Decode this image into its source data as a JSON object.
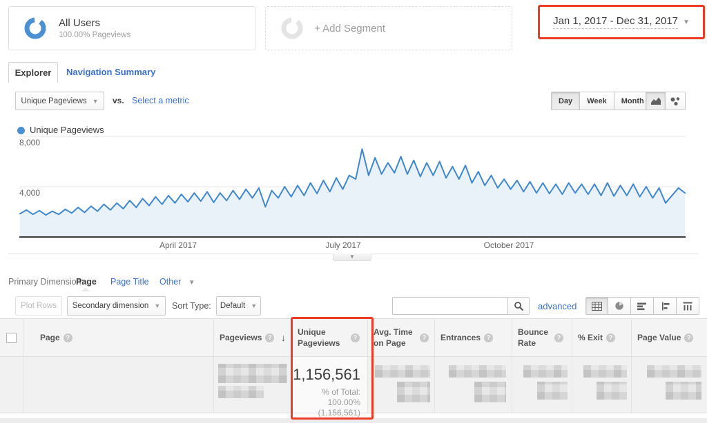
{
  "colors": {
    "accent_blue": "#4a90d2",
    "link_blue": "#3b6fd0",
    "chart_line": "#3f87cf",
    "chart_fill": "#e9f1f9",
    "annotation_red": "#ee3b24"
  },
  "icons": {
    "help_glyph": "?",
    "sort_desc_glyph": "↓",
    "caret_glyph": "▼",
    "collapse_glyph": "▼"
  },
  "segments": {
    "all_users": {
      "name": "All Users",
      "detail": "100.00% Pageviews"
    },
    "add_segment": {
      "label": "+ Add Segment"
    }
  },
  "date_range": {
    "label": "Jan 1, 2017 - Dec 31, 2017"
  },
  "tabs": {
    "explorer": "Explorer",
    "navigation_summary": "Navigation Summary"
  },
  "metric_bar": {
    "metric_dropdown": "Unique Pageviews",
    "vs_label": "vs.",
    "select_metric": "Select a metric",
    "granularity": {
      "day": "Day",
      "week": "Week",
      "month": "Month"
    },
    "active_granularity": "Day"
  },
  "chart_data": {
    "type": "area",
    "title": "Unique Pageviews",
    "legend_position": "top-left",
    "grid": true,
    "x_range": [
      "Jan 1, 2017",
      "Dec 31, 2017"
    ],
    "x_ticks": [
      "April 2017",
      "July 2017",
      "October 2017"
    ],
    "y_ticks": [
      4000,
      8000
    ],
    "y_tick_labels": [
      "4,000",
      "8,000"
    ],
    "ylim": [
      0,
      8000
    ],
    "series": [
      {
        "name": "Unique Pageviews",
        "values": [
          1850,
          2150,
          1800,
          2100,
          1750,
          2050,
          1800,
          2200,
          1900,
          2350,
          1950,
          2450,
          2050,
          2600,
          2150,
          2700,
          2250,
          2900,
          2350,
          3050,
          2500,
          3200,
          2600,
          3300,
          2700,
          3400,
          2800,
          3500,
          2850,
          3600,
          2750,
          3500,
          2900,
          3700,
          3000,
          3800,
          3100,
          3900,
          2400,
          3700,
          3100,
          4000,
          3200,
          4100,
          3300,
          4300,
          3450,
          4500,
          3600,
          4700,
          3800,
          4900,
          4600,
          7000,
          4900,
          6300,
          5000,
          5900,
          5100,
          6400,
          5000,
          6100,
          4800,
          5900,
          4900,
          6000,
          4700,
          5600,
          4600,
          5700,
          4300,
          5200,
          4100,
          4900,
          3900,
          4600,
          3800,
          4500,
          3600,
          4400,
          3500,
          4300,
          3450,
          4200,
          3400,
          4300,
          3500,
          4200,
          3400,
          4200,
          3300,
          4300,
          3250,
          4100,
          3300,
          4200,
          3200,
          4000,
          3100,
          3900,
          2700,
          3300,
          3900,
          3500
        ]
      }
    ]
  },
  "primary_dimension": {
    "label": "Primary Dimension:",
    "active": "Page",
    "page_title": "Page Title",
    "other": "Other"
  },
  "table_toolbar": {
    "plot_rows": "Plot Rows",
    "secondary_dimension": "Secondary dimension",
    "sort_type_label": "Sort Type:",
    "sort_type_value": "Default",
    "search_value": "",
    "advanced": "advanced"
  },
  "table": {
    "columns": [
      {
        "label": ""
      },
      {
        "label": "Page",
        "help": true
      },
      {
        "label": "Pageviews",
        "help": true,
        "sort": "desc"
      },
      {
        "label": "Unique Pageviews",
        "help": true,
        "highlighted": true
      },
      {
        "label": "Avg. Time on Page",
        "help": true
      },
      {
        "label": "Entrances",
        "help": true
      },
      {
        "label": "Bounce Rate",
        "help": true
      },
      {
        "label": "% Exit",
        "help": true
      },
      {
        "label": "Page Value",
        "help": true
      }
    ],
    "summary_row": {
      "unique_pageviews": "1,156,561",
      "percent_lines": [
        "% of Total:",
        "100.00%",
        "(1,156,561)"
      ]
    }
  }
}
